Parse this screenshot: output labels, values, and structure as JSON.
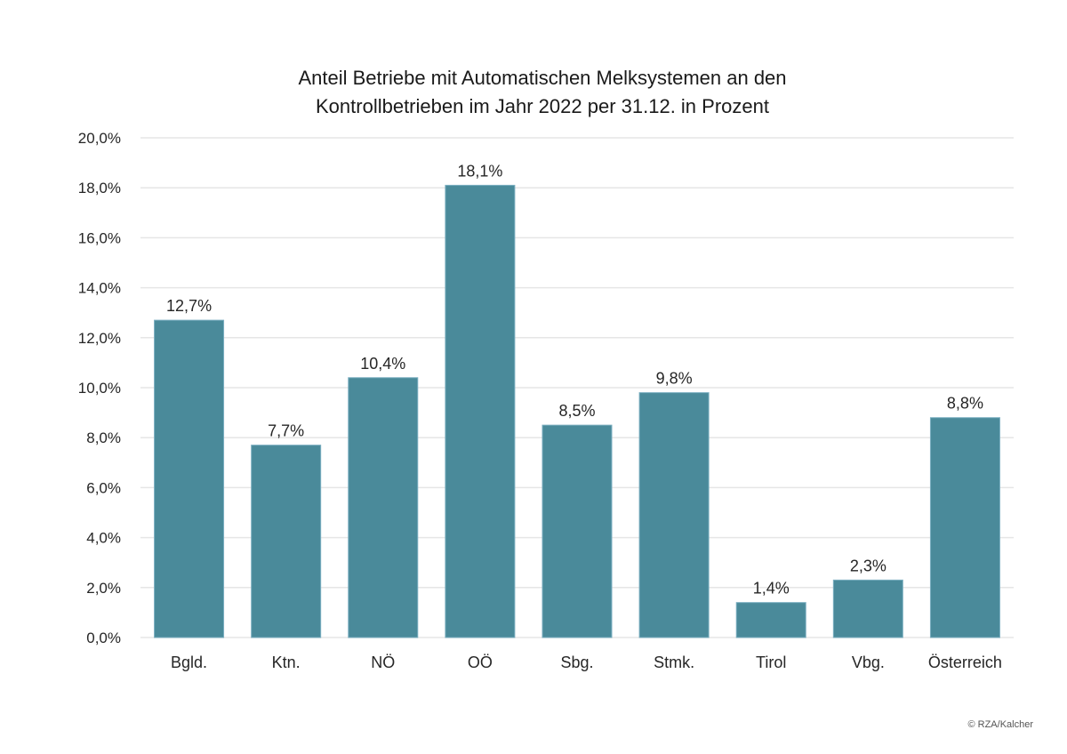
{
  "chart_data": {
    "type": "bar",
    "title": "Anteil Betriebe mit Automatischen Melksystemen an den Kontrollbetrieben im Jahr 2022 per 31.12. in Prozent",
    "title_lines": [
      "Anteil Betriebe mit Automatischen Melksystemen an den",
      "Kontrollbetrieben im Jahr 2022 per 31.12. in Prozent"
    ],
    "xlabel": "",
    "ylabel": "",
    "categories": [
      "Bgld.",
      "Ktn.",
      "NÖ",
      "OÖ",
      "Sbg.",
      "Stmk.",
      "Tirol",
      "Vbg.",
      "Österreich"
    ],
    "values": [
      12.7,
      7.7,
      10.4,
      18.1,
      8.5,
      9.8,
      1.4,
      2.3,
      8.8
    ],
    "data_labels": [
      "12,7%",
      "7,7%",
      "10,4%",
      "18,1%",
      "8,5%",
      "9,8%",
      "1,4%",
      "2,3%",
      "8,8%"
    ],
    "ylim": [
      0,
      20
    ],
    "yticks": [
      0,
      2,
      4,
      6,
      8,
      10,
      12,
      14,
      16,
      18,
      20
    ],
    "ytick_labels": [
      "0,0%",
      "2,0%",
      "4,0%",
      "6,0%",
      "8,0%",
      "10,0%",
      "12,0%",
      "14,0%",
      "16,0%",
      "18,0%",
      "20,0%"
    ],
    "grid": true,
    "legend": "none",
    "bar_color": "#4a8a9a"
  },
  "credit": "© RZA/Kalcher"
}
